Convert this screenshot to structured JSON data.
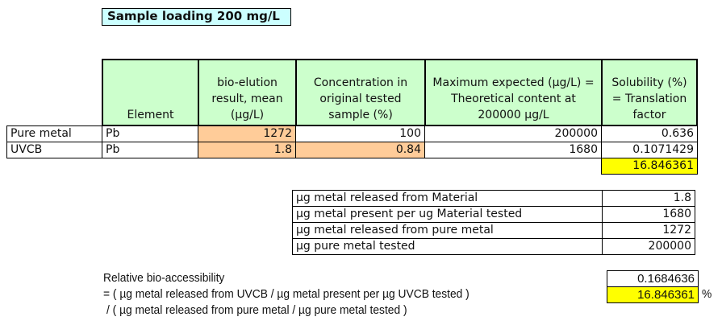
{
  "title": "Sample loading 200 mg/L",
  "table": {
    "headers": [
      "Element",
      "bio-elution result, mean (µg/L)",
      "Concentration in original tested sample (%)",
      "Maximum expected (µg/L) = Theoretical content at 200000 µg/L",
      "Solubility (%) = Translation factor"
    ],
    "rows": [
      {
        "label": "Pure metal",
        "element": "Pb",
        "bio": "1272",
        "conc": "100",
        "max": "200000",
        "sol": "0.636"
      },
      {
        "label": "UVCB",
        "element": "Pb",
        "bio": "1.8",
        "conc": "0.84",
        "max": "1680",
        "sol": "0.1071429"
      }
    ],
    "ratio": "16.846361"
  },
  "summary": [
    {
      "label": "µg metal released from Material",
      "value": "1.8"
    },
    {
      "label": "µg metal present per ug Material tested",
      "value": "1680"
    },
    {
      "label": "µg metal released from pure metal",
      "value": "1272"
    },
    {
      "label": "µg pure metal tested",
      "value": "200000"
    }
  ],
  "relative": {
    "line1": "Relative bio-accessibility",
    "line2": "= ( µg metal released from UVCB / µg metal present per µg UVCB tested )",
    "line3": " /  ( µg metal released from pure metal / µg pure metal tested )",
    "value": "0.1684636",
    "percent": "16.846361",
    "unit": "%"
  }
}
